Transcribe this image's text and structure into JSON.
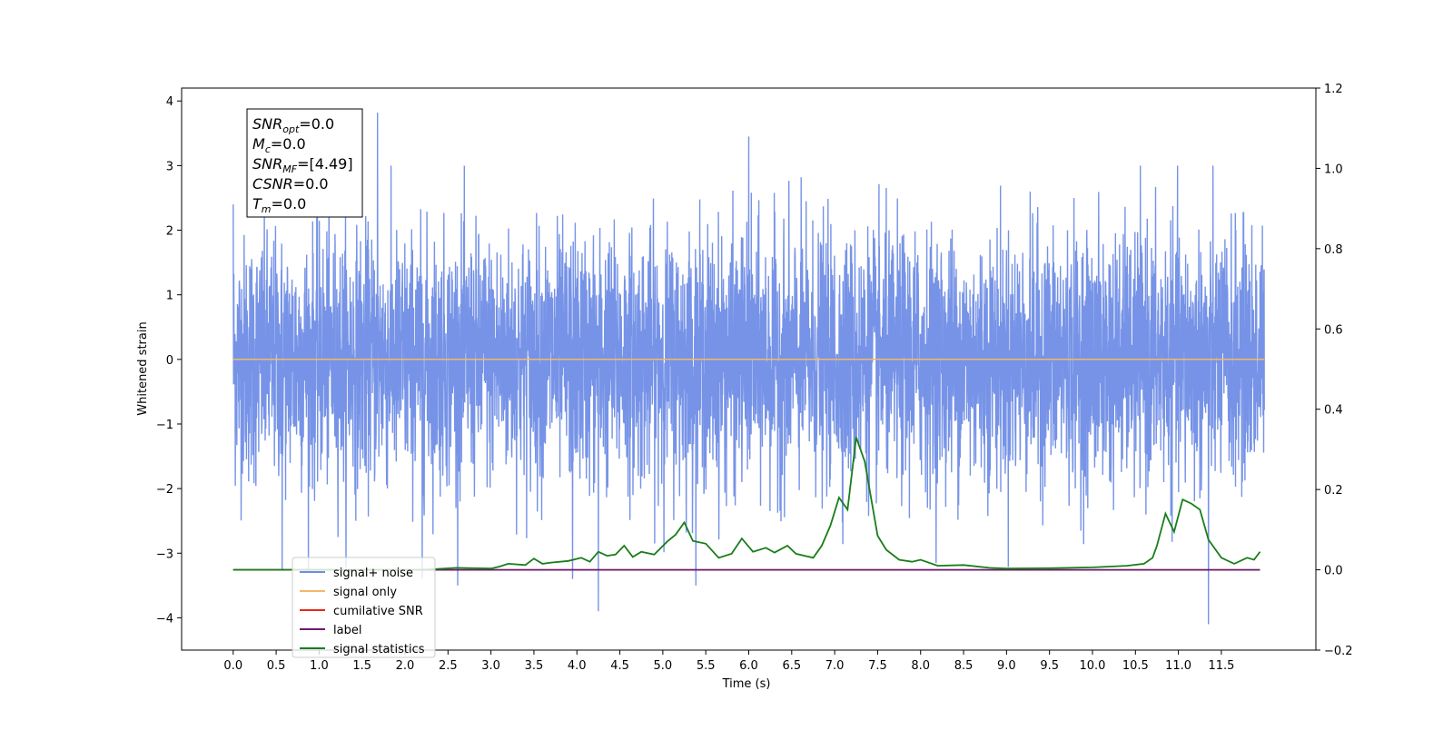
{
  "chart_data": {
    "type": "line",
    "title": "",
    "xlabel": "Time (s)",
    "ylabel": "Whitened strain",
    "ylabel_right": "",
    "xlim": [
      -0.6,
      12.6
    ],
    "ylim": [
      -4.5,
      4.2
    ],
    "ylim_right": [
      -0.2,
      1.2
    ],
    "x_ticks": [
      "0.0",
      "0.5",
      "1.0",
      "1.5",
      "2.0",
      "2.5",
      "3.0",
      "3.5",
      "4.0",
      "4.5",
      "5.0",
      "5.5",
      "6.0",
      "6.5",
      "7.0",
      "7.5",
      "8.0",
      "8.5",
      "9.0",
      "9.5",
      "10.0",
      "10.5",
      "11.0",
      "11.5"
    ],
    "y_ticks": [
      "4",
      "3",
      "2",
      "1",
      "0",
      "−1",
      "−2",
      "−3",
      "−4"
    ],
    "y_ticks_right": [
      "1.2",
      "1.0",
      "0.8",
      "0.6",
      "0.4",
      "0.2",
      "0.0",
      "−0.2"
    ],
    "grid": false,
    "legend_position": "lower-left",
    "series": [
      {
        "name": "signal+ noise",
        "axis": "left",
        "color": "#6f8de6",
        "x_range": [
          0.0,
          12.0
        ],
        "approx_value_range": [
          -4.1,
          3.8
        ],
        "peaks": [
          [
            0.0,
            2.4
          ],
          [
            0.57,
            -3.25
          ],
          [
            1.68,
            3.82
          ],
          [
            2.2,
            -3.4
          ],
          [
            3.95,
            -3.4
          ],
          [
            4.25,
            -3.9
          ],
          [
            6.0,
            3.45
          ],
          [
            11.35,
            -4.1
          ]
        ]
      },
      {
        "name": "signal only",
        "axis": "left",
        "color": "#f5b86a",
        "x": [
          0.0,
          12.0
        ],
        "values": [
          0.0,
          0.0
        ]
      },
      {
        "name": "cumilative SNR",
        "axis": "right",
        "color": "#e8251b",
        "x": [
          0.0,
          11.95
        ],
        "values": [
          0.0,
          0.0
        ]
      },
      {
        "name": "label",
        "axis": "right",
        "color": "#6c1a6e",
        "x": [
          0.0,
          11.95
        ],
        "values": [
          0.0,
          0.0
        ]
      },
      {
        "name": "signal statistics",
        "axis": "right",
        "color": "#1a7d1a",
        "x": [
          0.0,
          2.2,
          2.6,
          3.0,
          3.1,
          3.2,
          3.4,
          3.5,
          3.6,
          3.7,
          3.9,
          4.05,
          4.15,
          4.25,
          4.35,
          4.45,
          4.55,
          4.65,
          4.75,
          4.9,
          5.05,
          5.15,
          5.25,
          5.35,
          5.5,
          5.65,
          5.8,
          5.92,
          6.05,
          6.2,
          6.3,
          6.45,
          6.55,
          6.65,
          6.75,
          6.85,
          6.95,
          7.05,
          7.15,
          7.25,
          7.35,
          7.5,
          7.6,
          7.75,
          7.9,
          8.0,
          8.2,
          8.5,
          8.8,
          9.0,
          9.5,
          10.0,
          10.4,
          10.6,
          10.7,
          10.75,
          10.85,
          10.95,
          11.05,
          11.15,
          11.25,
          11.35,
          11.5,
          11.65,
          11.8,
          11.88,
          11.95
        ],
        "values": [
          0.0,
          0.0,
          0.005,
          0.003,
          0.008,
          0.015,
          0.012,
          0.028,
          0.015,
          0.018,
          0.022,
          0.03,
          0.02,
          0.045,
          0.035,
          0.038,
          0.06,
          0.032,
          0.045,
          0.038,
          0.07,
          0.088,
          0.118,
          0.072,
          0.065,
          0.03,
          0.04,
          0.078,
          0.045,
          0.055,
          0.043,
          0.06,
          0.04,
          0.035,
          0.03,
          0.06,
          0.11,
          0.18,
          0.15,
          0.33,
          0.27,
          0.085,
          0.05,
          0.025,
          0.02,
          0.025,
          0.01,
          0.012,
          0.005,
          0.003,
          0.004,
          0.006,
          0.01,
          0.015,
          0.03,
          0.06,
          0.14,
          0.095,
          0.175,
          0.165,
          0.15,
          0.075,
          0.03,
          0.015,
          0.03,
          0.025,
          0.045
        ]
      }
    ],
    "annotations": [
      {
        "base": "SNR",
        "sub": "opt",
        "value": "=0.0"
      },
      {
        "base": "M",
        "sub": "c",
        "value": "=0.0"
      },
      {
        "base": "SNR",
        "sub": "MF",
        "value": "=[4.49]"
      },
      {
        "base": "CSNR",
        "sub": "",
        "value": "=0.0"
      },
      {
        "base": "T",
        "sub": "m",
        "value": "=0.0"
      }
    ]
  }
}
